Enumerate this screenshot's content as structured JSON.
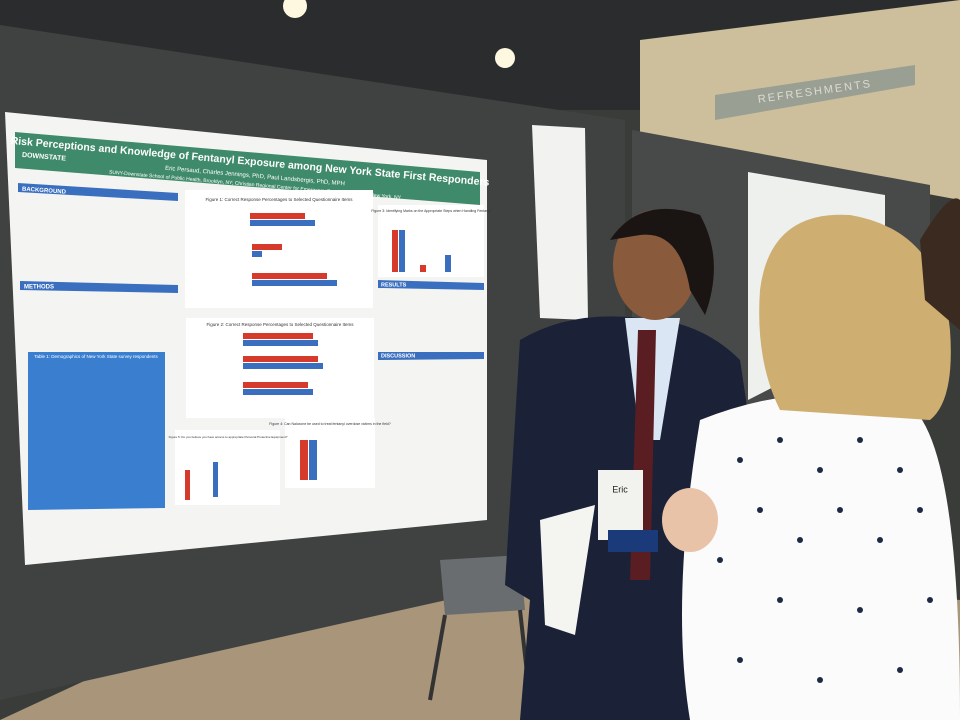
{
  "poster": {
    "title": "Risk Perceptions and Knowledge of Fentanyl Exposure among New York State First Responders",
    "authors": "Eric Persaud, Charles Jennings, PhD, Paul Landsbergis, PhD, MPH",
    "affiliations": "SUNY-Downstate School of Public Health, Brooklyn, NY; Christian Regional Center for Emergency Response Studies, New York, NY",
    "logo": "DOWNSTATE",
    "sections": [
      "BACKGROUND",
      "METHODS",
      "RESULTS",
      "DISCUSSION"
    ],
    "figures": [
      "Figure 1: Correct Response Percentages to Selected Questionnaire Items",
      "Figure 2: Correct Response Percentages to Selected Questionnaire Items",
      "Figure 3: Identifying Marks on the Appropriate Steps when Handling Fentanyl",
      "Figure 4: Can Naloxone be used to treat fentanyl overdose victims in the field?",
      "Figure 5: Do you believe you have access to appropriate Personal Protective Equipment?"
    ],
    "table_title": "Table 1: Demographics of New York State survey respondents"
  },
  "badge": {
    "name": "Eric"
  },
  "wall_sign": "REFRESHMENTS"
}
